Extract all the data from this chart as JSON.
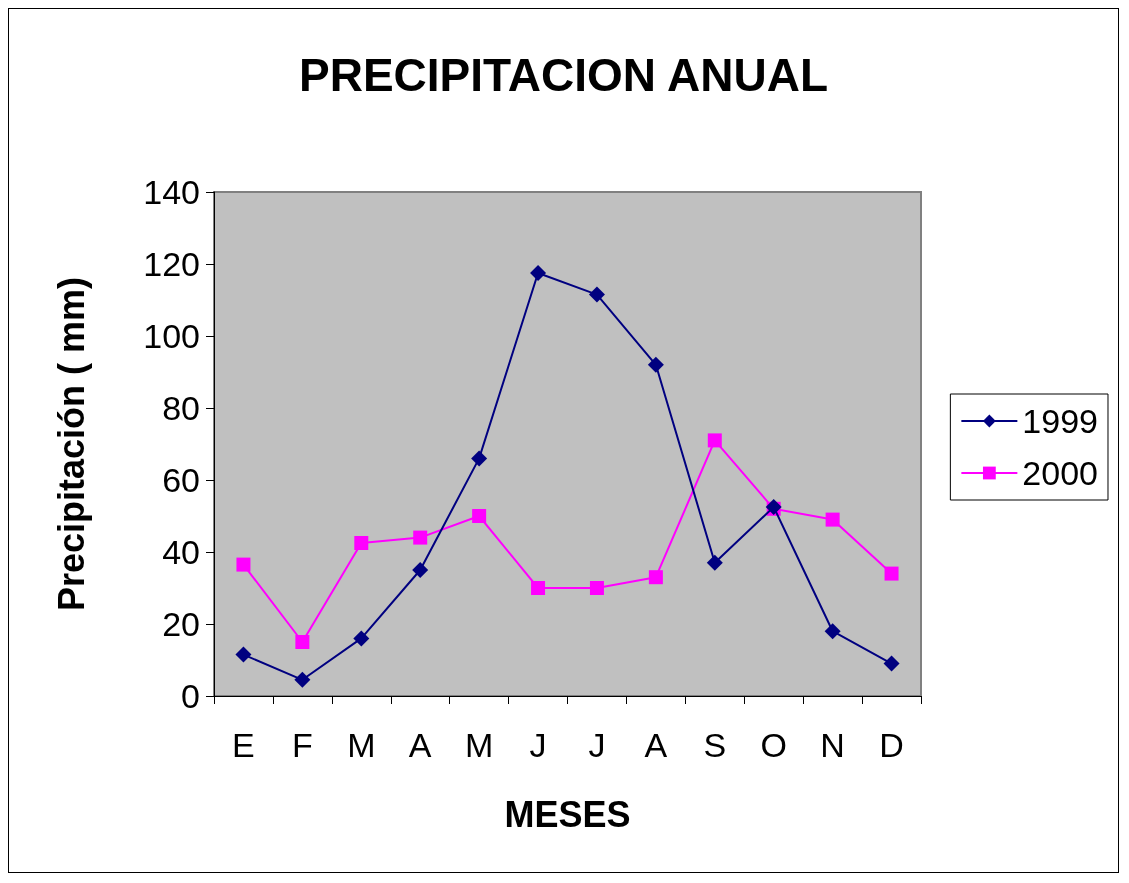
{
  "chart_data": {
    "type": "line",
    "title": "PRECIPITACION ANUAL",
    "xlabel": "MESES",
    "ylabel": "Precipitación ( mm)",
    "categories": [
      "E",
      "F",
      "M",
      "A",
      "M",
      "J",
      "J",
      "A",
      "S",
      "O",
      "N",
      "D"
    ],
    "series": [
      {
        "name": "1999",
        "color": "#000080",
        "marker": "diamond",
        "values": [
          11.5,
          4.5,
          16,
          35,
          66,
          117.5,
          111.5,
          92,
          37,
          52.5,
          18,
          9
        ]
      },
      {
        "name": "2000",
        "color": "#ff00ff",
        "marker": "square",
        "values": [
          36.5,
          15,
          42.5,
          44,
          50,
          30,
          30,
          33,
          71,
          52,
          49,
          34
        ]
      }
    ],
    "ylim": [
      0,
      140
    ],
    "yticks": [
      0,
      20,
      40,
      60,
      80,
      100,
      120,
      140
    ],
    "grid": false,
    "legend": "right",
    "line_style": "solid"
  }
}
